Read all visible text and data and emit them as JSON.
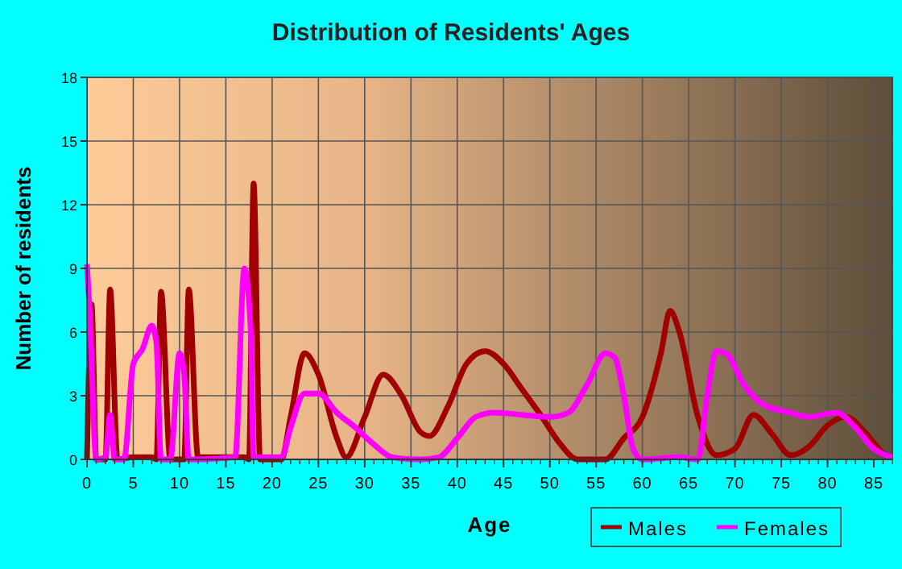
{
  "chart_data": {
    "type": "line",
    "title": "Distribution of Residents' Ages",
    "xlabel": "Age",
    "ylabel": "Number of residents",
    "xlim": [
      0,
      87
    ],
    "xticks": [
      0,
      5,
      10,
      15,
      20,
      25,
      30,
      35,
      40,
      45,
      50,
      55,
      60,
      65,
      70,
      75,
      80,
      85
    ],
    "ylim": [
      0,
      18
    ],
    "yticks": [
      0,
      3,
      6,
      9,
      12,
      15,
      18
    ],
    "grid": true,
    "legend": "bottom right",
    "line_style": "solid",
    "series": [
      {
        "name": "Males",
        "color": "#a00000",
        "x": [
          0,
          0.5,
          1,
          2,
          2.5,
          3.3,
          5,
          7,
          7.5,
          8,
          9,
          10,
          10.5,
          11,
          12,
          17,
          17.5,
          18,
          18.7,
          19,
          21,
          22,
          23.5,
          25,
          27,
          28,
          30,
          32,
          34,
          36,
          37,
          39,
          41,
          43,
          45,
          47,
          49,
          51,
          53,
          56,
          58,
          60,
          62,
          63,
          64,
          66,
          68,
          70,
          72,
          74,
          76,
          78,
          80,
          82,
          84,
          86,
          87
        ],
        "values": [
          0,
          7.3,
          0,
          0,
          8,
          0,
          0.1,
          0.1,
          0,
          7.9,
          0,
          0,
          0,
          8,
          0.1,
          0.1,
          0,
          13,
          0,
          0,
          0,
          2,
          5,
          4,
          1,
          0.1,
          2,
          4,
          3,
          1.3,
          1.1,
          2.5,
          4.5,
          5.1,
          4.5,
          3.3,
          2.1,
          0.8,
          0,
          0,
          1,
          2,
          5,
          7,
          6,
          2,
          0.2,
          0.5,
          2.1,
          1.2,
          0.2,
          0.6,
          1.6,
          2,
          1.3,
          0.3,
          0.1
        ]
      },
      {
        "name": "Females",
        "color": "#ff00ff",
        "x": [
          0,
          0.3,
          1,
          2,
          2.5,
          3,
          4,
          5,
          6,
          7,
          7.5,
          8,
          9,
          10,
          10.5,
          11,
          16,
          17,
          17.7,
          18,
          20,
          21,
          22,
          23.5,
          25,
          27,
          29,
          31,
          33,
          36,
          38,
          40,
          42,
          44,
          47,
          50,
          52,
          54,
          56,
          57,
          58,
          59,
          60,
          64,
          66,
          67,
          68,
          69,
          71,
          73,
          76,
          78,
          81,
          83,
          85,
          87
        ],
        "values": [
          9.2,
          6.9,
          0,
          0.1,
          2.1,
          0,
          0,
          4.5,
          5.2,
          6.3,
          5.5,
          0,
          0,
          5,
          4,
          0,
          0.1,
          9,
          6,
          0.1,
          0.1,
          0.1,
          1.5,
          3.1,
          3.1,
          2.2,
          1.5,
          0.7,
          0.1,
          0,
          0.1,
          1,
          2,
          2.2,
          2.1,
          2,
          2.2,
          3.5,
          5,
          4.8,
          3,
          0.5,
          0,
          0.1,
          0,
          3,
          5.1,
          5,
          3.5,
          2.6,
          2.2,
          2,
          2.2,
          1.5,
          0.5,
          0.1
        ]
      }
    ]
  }
}
